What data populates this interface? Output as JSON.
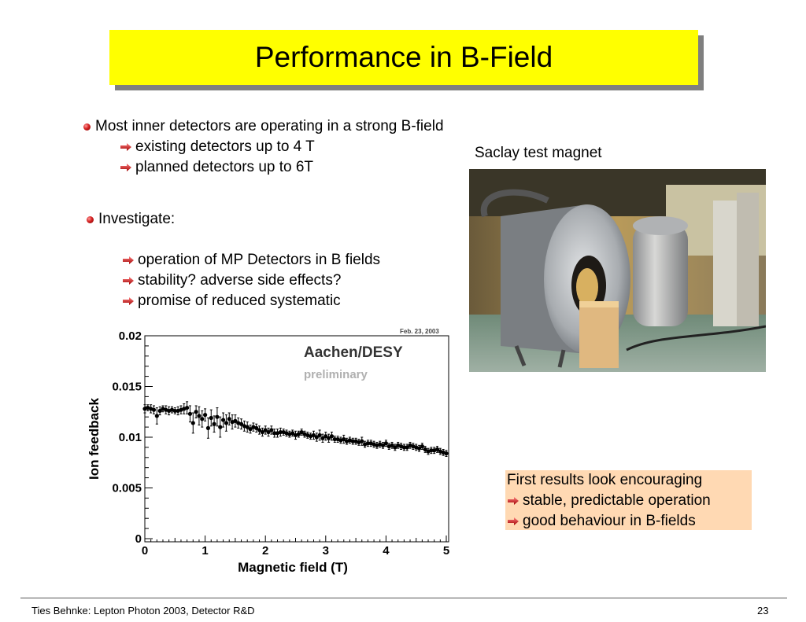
{
  "slide": {
    "title": "Performance in B-Field",
    "bullets": {
      "main1": "Most inner detectors are operating in a strong B-field",
      "sub1a": "existing detectors up to 4 T",
      "sub1b": "planned detectors up to 6T",
      "main2": "Investigate:",
      "sub2a": "operation of MP Detectors in B fields",
      "sub2b": "stability? adverse side effects?",
      "sub2c": "promise of reduced systematic"
    },
    "photo_caption": "Saclay test magnet",
    "result": {
      "heading": "First results look encouraging",
      "item1": "stable, predictable operation",
      "item2": "good behaviour in B-fields"
    },
    "footer": {
      "left": "Ties Behnke: Lepton Photon 2003, Detector R&D",
      "page": "23"
    }
  },
  "chart_data": {
    "type": "scatter",
    "date": "Feb. 23, 2003",
    "label_main": "Aachen/DESY",
    "label_sub": "preliminary",
    "xlabel": "Magnetic field (T)",
    "ylabel": "Ion feedback",
    "xlim": [
      0,
      5
    ],
    "ylim": [
      0,
      0.02
    ],
    "xticks": [
      "0",
      "1",
      "2",
      "3",
      "4",
      "5"
    ],
    "yticks": [
      "0",
      "0.005",
      "0.01",
      "0.015",
      "0.02"
    ],
    "x": [
      0.0,
      0.05,
      0.1,
      0.15,
      0.2,
      0.25,
      0.3,
      0.35,
      0.4,
      0.45,
      0.5,
      0.55,
      0.6,
      0.65,
      0.7,
      0.75,
      0.8,
      0.85,
      0.9,
      0.95,
      1.0,
      1.05,
      1.1,
      1.15,
      1.2,
      1.25,
      1.3,
      1.35,
      1.4,
      1.45,
      1.5,
      1.55,
      1.6,
      1.65,
      1.7,
      1.75,
      1.8,
      1.85,
      1.9,
      1.95,
      2.0,
      2.05,
      2.1,
      2.15,
      2.2,
      2.25,
      2.3,
      2.35,
      2.4,
      2.45,
      2.5,
      2.55,
      2.6,
      2.65,
      2.7,
      2.75,
      2.8,
      2.85,
      2.9,
      2.95,
      3.0,
      3.05,
      3.1,
      3.15,
      3.2,
      3.25,
      3.3,
      3.35,
      3.4,
      3.45,
      3.5,
      3.55,
      3.6,
      3.65,
      3.7,
      3.75,
      3.8,
      3.85,
      3.9,
      3.95,
      4.0,
      4.05,
      4.1,
      4.15,
      4.2,
      4.25,
      4.3,
      4.35,
      4.4,
      4.45,
      4.5,
      4.55,
      4.6,
      4.65,
      4.7,
      4.75,
      4.8,
      4.85,
      4.9,
      4.95,
      5.0
    ],
    "y": [
      0.0128,
      0.0129,
      0.0128,
      0.0127,
      0.0121,
      0.0126,
      0.0128,
      0.0127,
      0.0126,
      0.0127,
      0.0126,
      0.0126,
      0.0127,
      0.0128,
      0.0129,
      0.0123,
      0.0114,
      0.0125,
      0.0121,
      0.0118,
      0.0122,
      0.0109,
      0.0119,
      0.0113,
      0.012,
      0.011,
      0.0117,
      0.0114,
      0.0118,
      0.0115,
      0.0116,
      0.0114,
      0.0113,
      0.0111,
      0.011,
      0.0108,
      0.011,
      0.0109,
      0.0107,
      0.0105,
      0.0107,
      0.0105,
      0.0107,
      0.0104,
      0.0104,
      0.0105,
      0.0105,
      0.0104,
      0.0103,
      0.0104,
      0.0102,
      0.0103,
      0.0105,
      0.0103,
      0.0102,
      0.0101,
      0.0102,
      0.01,
      0.0102,
      0.0099,
      0.0101,
      0.0099,
      0.0101,
      0.0098,
      0.0098,
      0.0097,
      0.0098,
      0.0096,
      0.0097,
      0.0096,
      0.0096,
      0.0095,
      0.0096,
      0.0093,
      0.0094,
      0.0094,
      0.0093,
      0.0092,
      0.0093,
      0.0092,
      0.0094,
      0.0091,
      0.0092,
      0.009,
      0.0092,
      0.0091,
      0.009,
      0.009,
      0.0092,
      0.0091,
      0.009,
      0.0089,
      0.0091,
      0.0088,
      0.0086,
      0.0087,
      0.0087,
      0.0088,
      0.0086,
      0.0085,
      0.0084
    ],
    "err": [
      0.0004,
      0.0003,
      0.0004,
      0.0004,
      0.0008,
      0.0004,
      0.0003,
      0.0004,
      0.0004,
      0.0003,
      0.0003,
      0.0004,
      0.0004,
      0.0005,
      0.0006,
      0.0008,
      0.001,
      0.0006,
      0.0009,
      0.0008,
      0.0006,
      0.001,
      0.0008,
      0.0008,
      0.0009,
      0.001,
      0.0007,
      0.0008,
      0.0006,
      0.0007,
      0.0006,
      0.0005,
      0.0005,
      0.0005,
      0.0005,
      0.0004,
      0.0004,
      0.0004,
      0.0004,
      0.0004,
      0.0004,
      0.0004,
      0.0004,
      0.0004,
      0.0004,
      0.0004,
      0.0003,
      0.0003,
      0.0003,
      0.0003,
      0.0004,
      0.0003,
      0.0003,
      0.0003,
      0.0003,
      0.0003,
      0.0004,
      0.0004,
      0.0005,
      0.0004,
      0.0004,
      0.0004,
      0.0004,
      0.0003,
      0.0003,
      0.0003,
      0.0004,
      0.0003,
      0.0003,
      0.0003,
      0.0003,
      0.0003,
      0.0004,
      0.0003,
      0.0003,
      0.0003,
      0.0003,
      0.0003,
      0.0003,
      0.0003,
      0.0003,
      0.0003,
      0.0003,
      0.0003,
      0.0003,
      0.0003,
      0.0003,
      0.0003,
      0.0003,
      0.0003,
      0.0003,
      0.0003,
      0.0003,
      0.0003,
      0.0003,
      0.0003,
      0.0003,
      0.0003,
      0.0003,
      0.0003,
      0.0003
    ]
  }
}
